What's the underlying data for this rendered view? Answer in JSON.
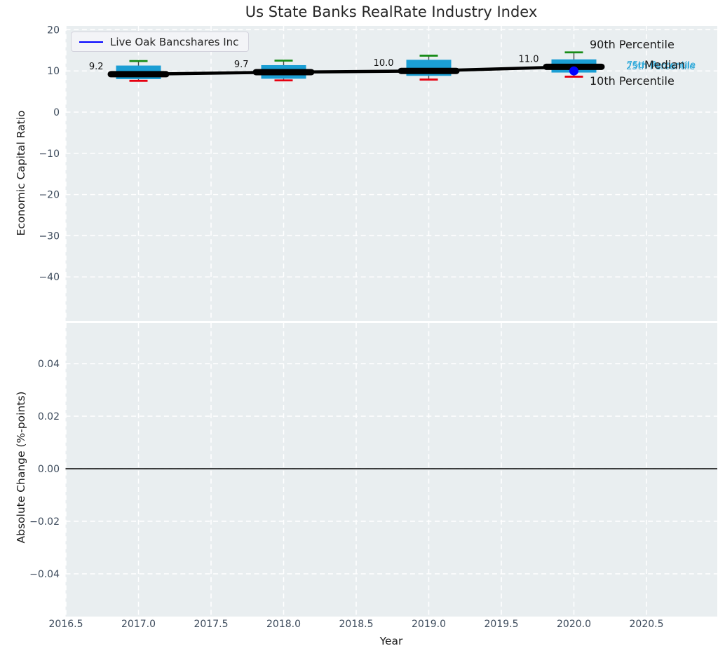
{
  "title": "Us State Banks RealRate Industry Index",
  "legend": {
    "label": "Live Oak Bancshares Inc"
  },
  "axes": {
    "top_ylabel": "Economic Capital Ratio",
    "bottom_ylabel": "Absolute Change (%-points)",
    "xlabel": "Year"
  },
  "annotations": {
    "p90": "90th Percentile",
    "p75": "75th Percentile",
    "median": "Median",
    "p25": "25th Percentile",
    "p10": "10th Percentile"
  },
  "chart_data": {
    "type": "boxplot-timeseries",
    "title": "Us State Banks RealRate Industry Index",
    "xlabel": "Year",
    "xlim": [
      2016.5,
      2021.0
    ],
    "xticks": [
      {
        "value": 2016.5,
        "label": "2016.5"
      },
      {
        "value": 2017.0,
        "label": "2017.0"
      },
      {
        "value": 2017.5,
        "label": "2017.5"
      },
      {
        "value": 2018.0,
        "label": "2018.0"
      },
      {
        "value": 2018.5,
        "label": "2018.5"
      },
      {
        "value": 2019.0,
        "label": "2019.0"
      },
      {
        "value": 2019.5,
        "label": "2019.5"
      },
      {
        "value": 2020.0,
        "label": "2020.0"
      },
      {
        "value": 2020.5,
        "label": "2020.5"
      }
    ],
    "top_panel": {
      "ylabel": "Economic Capital Ratio",
      "ylim": [
        -50.5,
        21
      ],
      "yticks": [
        {
          "value": 20,
          "label": "20"
        },
        {
          "value": 10,
          "label": "10"
        },
        {
          "value": 0,
          "label": "0"
        },
        {
          "value": -10,
          "label": "−10"
        },
        {
          "value": -20,
          "label": "−20"
        },
        {
          "value": -30,
          "label": "−30"
        },
        {
          "value": -40,
          "label": "−40"
        }
      ],
      "years": [
        2017,
        2018,
        2019,
        2020
      ],
      "median": [
        9.2,
        9.7,
        10.0,
        11.0
      ],
      "median_labels": [
        "9.2",
        "9.7",
        "10.0",
        "11.0"
      ],
      "p10": [
        7.6,
        7.7,
        7.9,
        8.6
      ],
      "p25": [
        8.0,
        8.1,
        8.8,
        9.6
      ],
      "p75": [
        11.3,
        11.4,
        12.7,
        12.8
      ],
      "p90": [
        12.4,
        12.5,
        13.7,
        14.5
      ],
      "company_series": {
        "name": "Live Oak Bancshares Inc",
        "points": [
          {
            "year": 2020,
            "value": 10.0
          }
        ]
      }
    },
    "bottom_panel": {
      "ylabel": "Absolute Change (%-points)",
      "ylim": [
        -0.056,
        0.055
      ],
      "yticks": [
        {
          "value": 0.04,
          "label": "0.04"
        },
        {
          "value": 0.02,
          "label": "0.02"
        },
        {
          "value": 0.0,
          "label": "0.00"
        },
        {
          "value": -0.02,
          "label": "−0.02"
        },
        {
          "value": -0.04,
          "label": "−0.04"
        }
      ],
      "zero_line": 0.0
    },
    "colors": {
      "box_fill": "#1b9ed4",
      "p90_cap": "#188c18",
      "p10_cap": "#e60010",
      "median_line": "#000000",
      "company_line": "#0000ff",
      "grid": "#ffffff",
      "plot_bg": "#e9eef0",
      "tick_label": "#3d4b5c",
      "percentile_label_cyan": "#29a7d9",
      "whisker_line": "#4a4a4a"
    }
  }
}
